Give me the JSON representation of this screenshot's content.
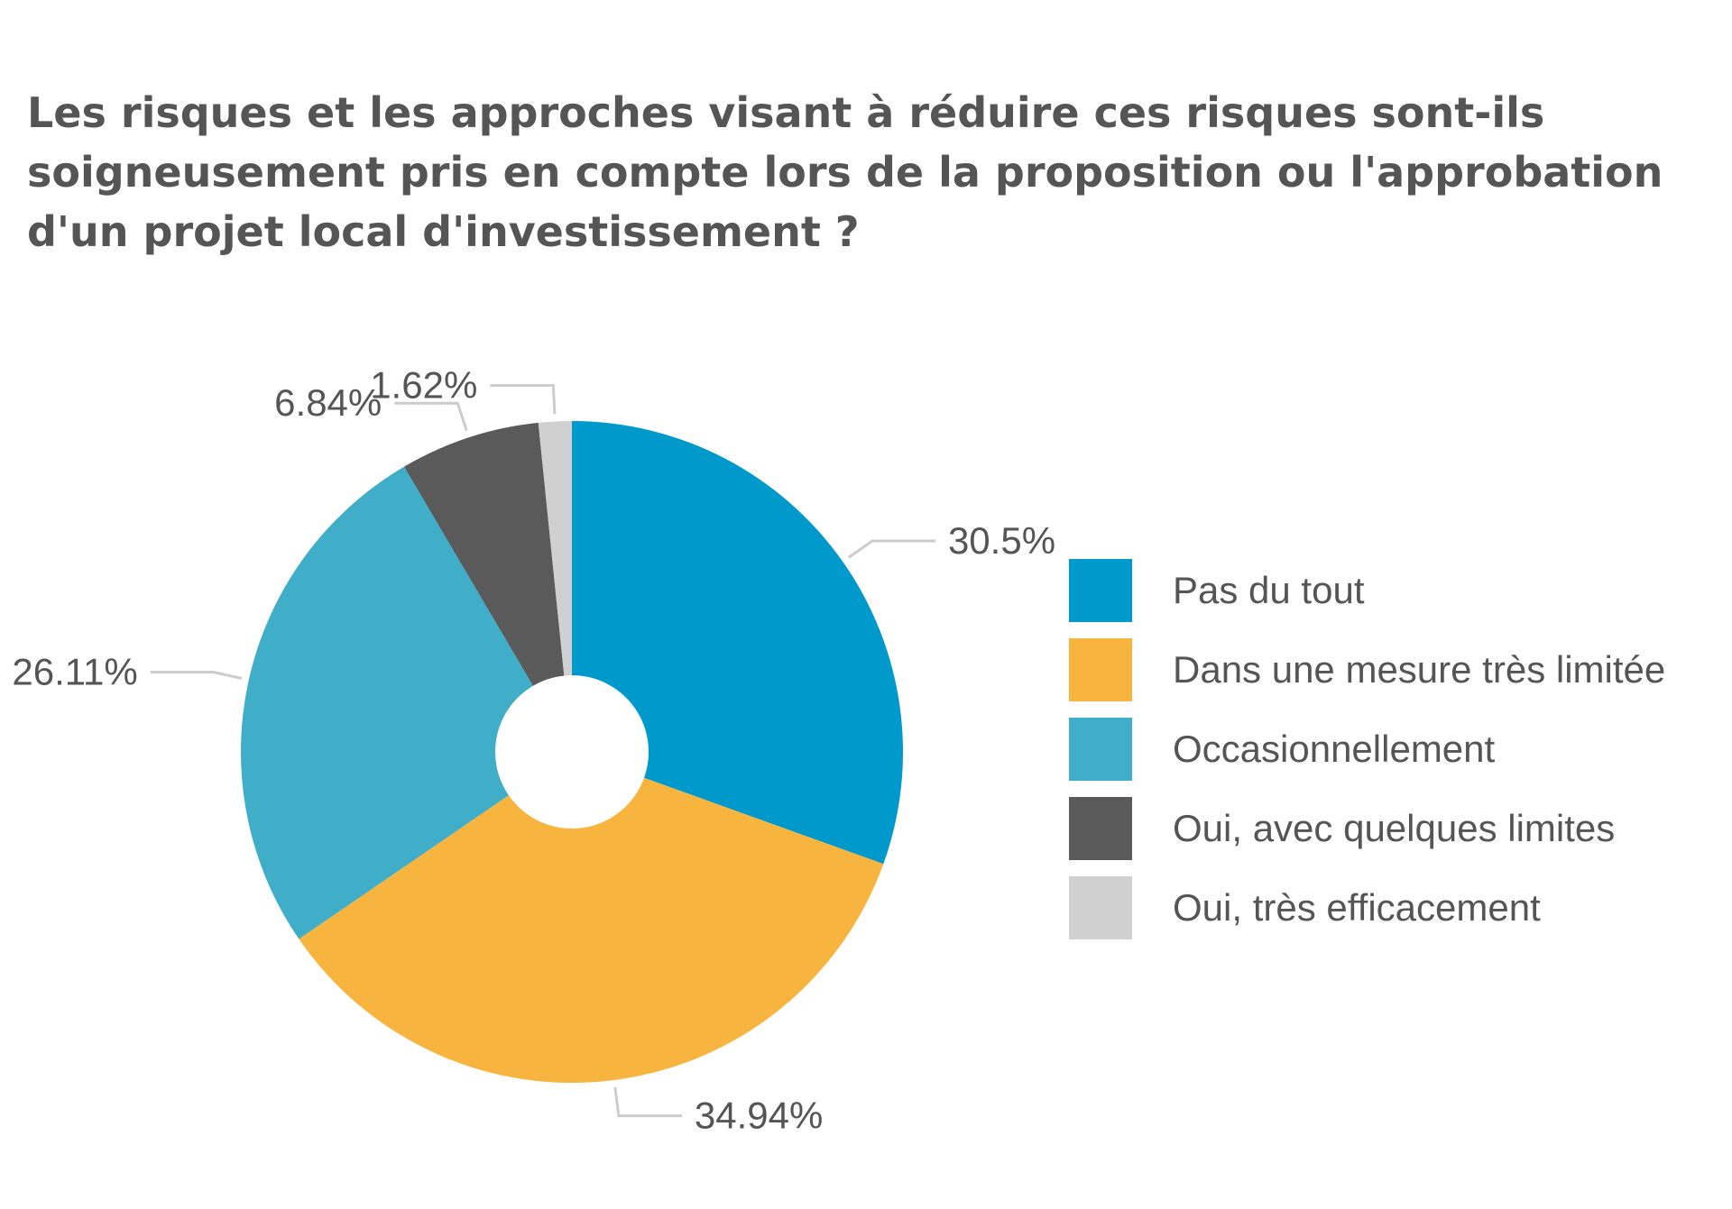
{
  "chart_data": {
    "type": "pie",
    "title_lines": [
      "Les risques et les approches visant à réduire ces risques sont-ils",
      "soigneusement pris en compte lors de la proposition ou l'approbation",
      "d'un projet local d'investissement ?"
    ],
    "donut": true,
    "legend_position": "right",
    "slices": [
      {
        "label": "Pas du tout",
        "value": 30.5,
        "value_label": "30.5%",
        "color": "#0099CC"
      },
      {
        "label": "Dans une mesure très limitée",
        "value": 34.94,
        "value_label": "34.94%",
        "color": "#F7B53F"
      },
      {
        "label": "Occasionnellement",
        "value": 26.11,
        "value_label": "26.11%",
        "color": "#40ADC9"
      },
      {
        "label": "Oui, avec quelques limites",
        "value": 6.84,
        "value_label": "6.84%",
        "color": "#5A5A5A"
      },
      {
        "label": "Oui, très efficacement",
        "value": 1.62,
        "value_label": "1.62%",
        "color": "#D0D0D0"
      }
    ]
  }
}
